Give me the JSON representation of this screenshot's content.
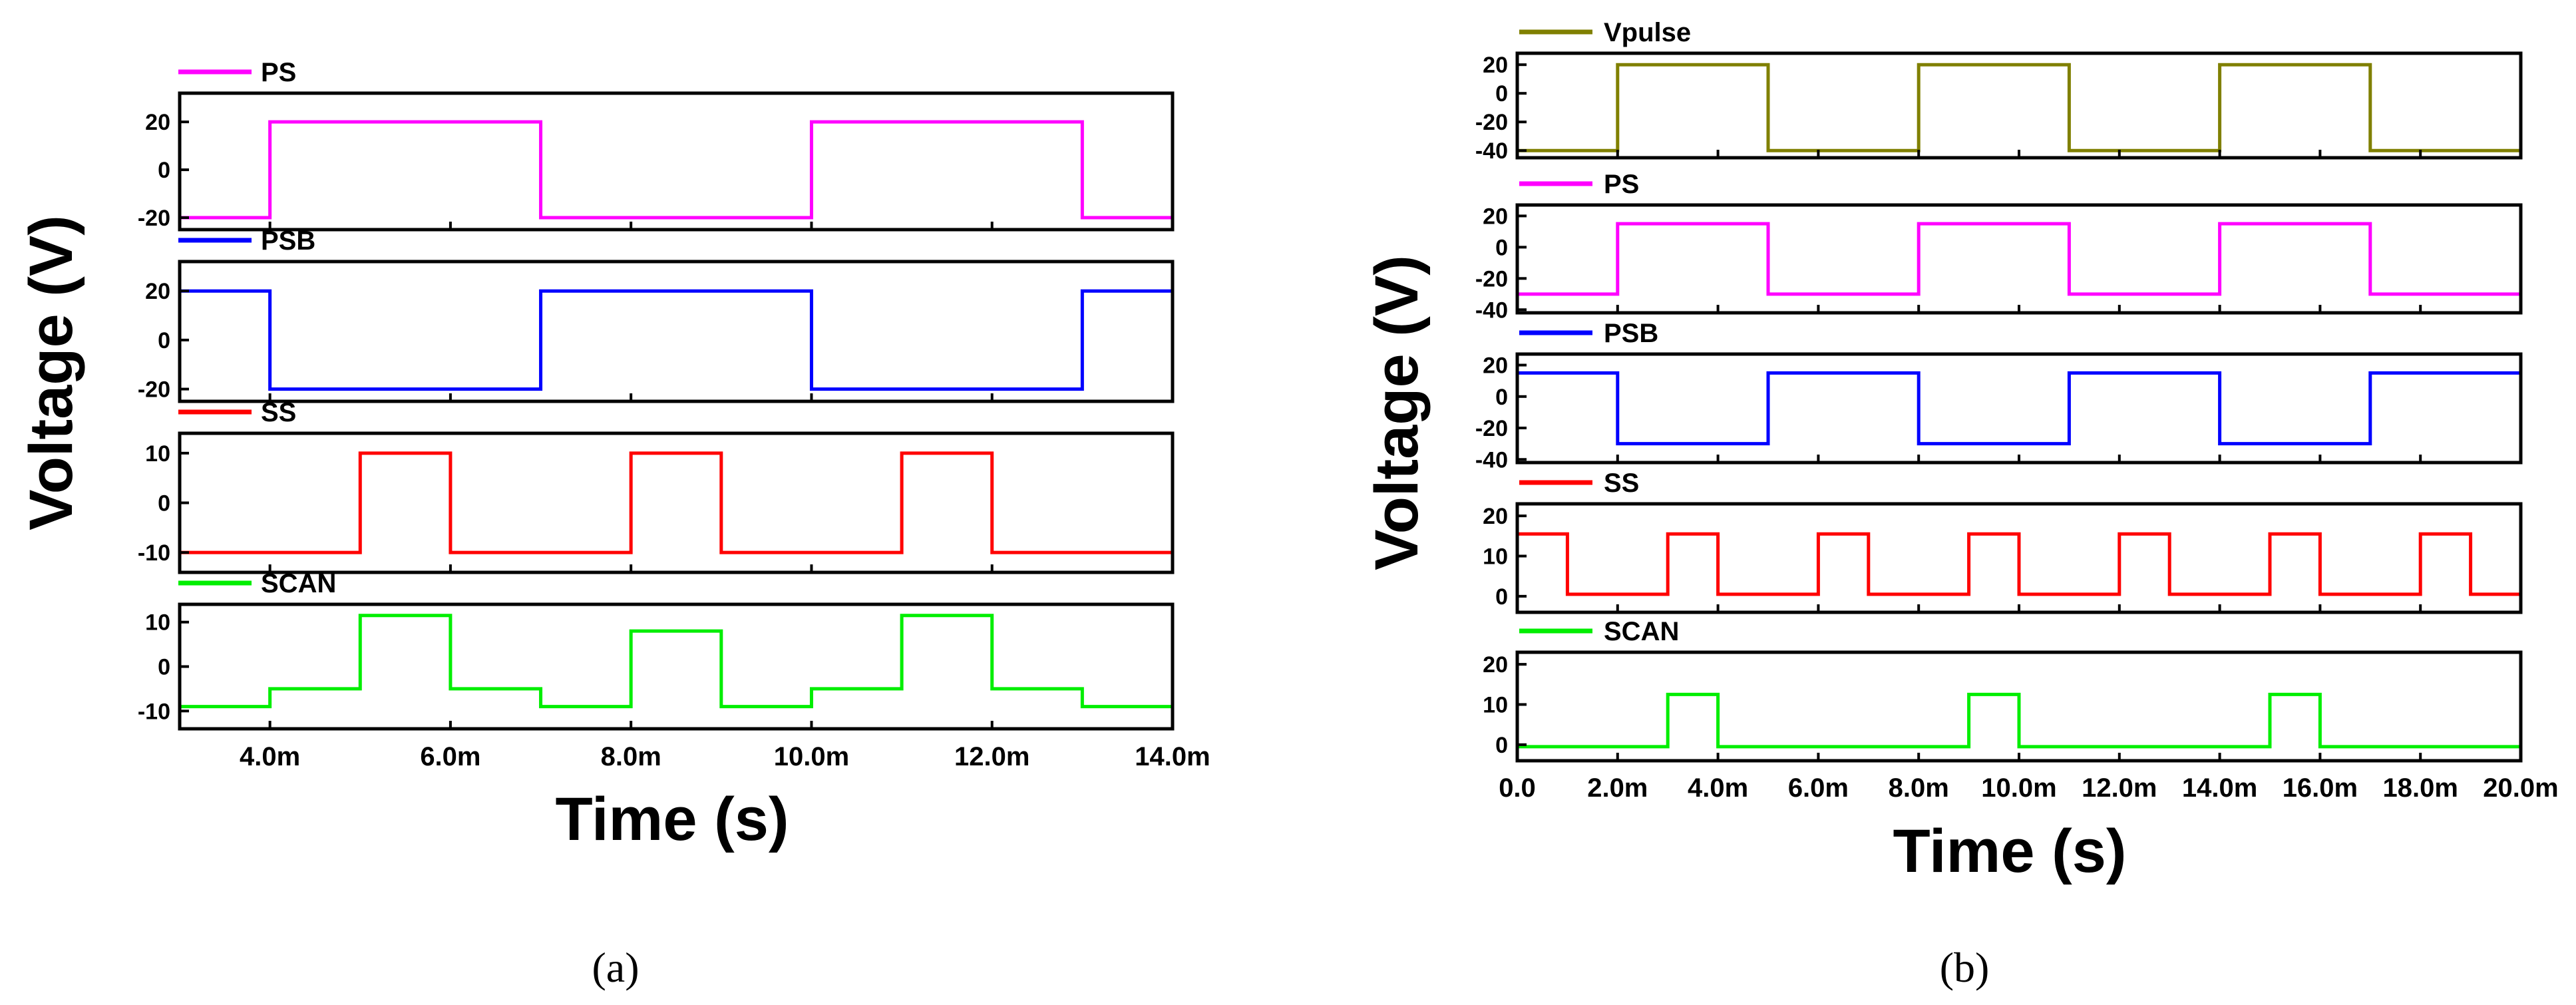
{
  "figure": {
    "subfigure_labels": [
      "(a)",
      "(b)"
    ]
  },
  "chart_data": [
    {
      "type": "line",
      "label": "(a)",
      "xlabel": "Time (s)",
      "ylabel": "Voltage (V)",
      "xlim": [
        3.0,
        14.0
      ],
      "x_units": "ms",
      "x_ticks": [
        4,
        6,
        8,
        10,
        12,
        14
      ],
      "x_tick_labels": [
        "4.0m",
        "6.0m",
        "8.0m",
        "10.0m",
        "12.0m",
        "14.0m"
      ],
      "series": [
        {
          "name": "PS",
          "color": "#ff00ff",
          "ylim": [
            -25,
            32
          ],
          "y_ticks": [
            -20,
            0,
            20
          ],
          "levels": [
            [
              3.0,
              -20
            ],
            [
              4.0,
              20
            ],
            [
              7.0,
              -20
            ],
            [
              10.0,
              20
            ],
            [
              13.0,
              -20
            ],
            [
              14.0,
              -20
            ]
          ]
        },
        {
          "name": "PSB",
          "color": "#0000ff",
          "ylim": [
            -25,
            32
          ],
          "y_ticks": [
            -20,
            0,
            20
          ],
          "levels": [
            [
              3.0,
              20
            ],
            [
              4.0,
              -20
            ],
            [
              7.0,
              20
            ],
            [
              10.0,
              -20
            ],
            [
              13.0,
              20
            ],
            [
              14.0,
              20
            ]
          ]
        },
        {
          "name": "SS",
          "color": "#ff0000",
          "ylim": [
            -14,
            14
          ],
          "y_ticks": [
            -10,
            0,
            10
          ],
          "levels": [
            [
              3.0,
              -10
            ],
            [
              5.0,
              10
            ],
            [
              6.0,
              -10
            ],
            [
              8.0,
              10
            ],
            [
              9.0,
              -10
            ],
            [
              11.0,
              10
            ],
            [
              12.0,
              -10
            ],
            [
              14.0,
              -10
            ]
          ]
        },
        {
          "name": "SCAN",
          "color": "#00ee00",
          "ylim": [
            -14,
            14
          ],
          "y_ticks": [
            -10,
            0,
            10
          ],
          "levels": [
            [
              3.0,
              -9
            ],
            [
              4.0,
              -5
            ],
            [
              5.0,
              11.5
            ],
            [
              6.0,
              -5
            ],
            [
              7.0,
              -9
            ],
            [
              8.0,
              8
            ],
            [
              9.0,
              -9
            ],
            [
              10.0,
              -5
            ],
            [
              11.0,
              11.5
            ],
            [
              12.0,
              -5
            ],
            [
              13.0,
              -9
            ],
            [
              14.0,
              -9
            ]
          ]
        }
      ]
    },
    {
      "type": "line",
      "label": "(b)",
      "xlabel": "Time (s)",
      "ylabel": "Voltage (V)",
      "xlim": [
        0.0,
        20.0
      ],
      "x_units": "ms",
      "x_ticks": [
        0,
        2,
        4,
        6,
        8,
        10,
        12,
        14,
        16,
        18,
        20
      ],
      "x_tick_labels": [
        "0.0",
        "2.0m",
        "4.0m",
        "6.0m",
        "8.0m",
        "10.0m",
        "12.0m",
        "14.0m",
        "16.0m",
        "18.0m",
        "20.0m"
      ],
      "series": [
        {
          "name": "Vpulse",
          "color": "#808000",
          "ylim": [
            -45,
            28
          ],
          "y_ticks": [
            -40,
            -20,
            0,
            20
          ],
          "levels": [
            [
              0.0,
              -40
            ],
            [
              2.0,
              20
            ],
            [
              5.0,
              -40
            ],
            [
              8.0,
              20
            ],
            [
              11.0,
              -40
            ],
            [
              14.0,
              20
            ],
            [
              17.0,
              -40
            ],
            [
              20.0,
              -40
            ]
          ]
        },
        {
          "name": "PS",
          "color": "#ff00ff",
          "ylim": [
            -42,
            27
          ],
          "y_ticks": [
            -40,
            -20,
            0,
            20
          ],
          "levels": [
            [
              0.0,
              -30
            ],
            [
              2.0,
              15
            ],
            [
              5.0,
              -30
            ],
            [
              8.0,
              15
            ],
            [
              11.0,
              -30
            ],
            [
              14.0,
              15
            ],
            [
              17.0,
              -30
            ],
            [
              20.0,
              -30
            ]
          ]
        },
        {
          "name": "PSB",
          "color": "#0000ff",
          "ylim": [
            -42,
            27
          ],
          "y_ticks": [
            -40,
            -20,
            0,
            20
          ],
          "levels": [
            [
              0.0,
              15
            ],
            [
              2.0,
              -30
            ],
            [
              5.0,
              15
            ],
            [
              8.0,
              -30
            ],
            [
              11.0,
              15
            ],
            [
              14.0,
              -30
            ],
            [
              17.0,
              15
            ],
            [
              20.0,
              15
            ]
          ]
        },
        {
          "name": "SS",
          "color": "#ff0000",
          "ylim": [
            -4,
            23
          ],
          "y_ticks": [
            0,
            10,
            20
          ],
          "levels": [
            [
              0.0,
              15.5
            ],
            [
              1.0,
              0.5
            ],
            [
              3.0,
              15.5
            ],
            [
              4.0,
              0.5
            ],
            [
              6.0,
              15.5
            ],
            [
              7.0,
              0.5
            ],
            [
              9.0,
              15.5
            ],
            [
              10.0,
              0.5
            ],
            [
              12.0,
              15.5
            ],
            [
              13.0,
              0.5
            ],
            [
              15.0,
              15.5
            ],
            [
              16.0,
              0.5
            ],
            [
              18.0,
              15.5
            ],
            [
              19.0,
              0.5
            ],
            [
              20.0,
              0.5
            ]
          ]
        },
        {
          "name": "SCAN",
          "color": "#00ee00",
          "ylim": [
            -4,
            23
          ],
          "y_ticks": [
            0,
            10,
            20
          ],
          "levels": [
            [
              0.0,
              -0.5
            ],
            [
              3.0,
              12.5
            ],
            [
              4.0,
              -0.5
            ],
            [
              9.0,
              12.5
            ],
            [
              10.0,
              -0.5
            ],
            [
              15.0,
              12.5
            ],
            [
              16.0,
              -0.5
            ],
            [
              20.0,
              -0.5
            ]
          ]
        }
      ]
    }
  ]
}
